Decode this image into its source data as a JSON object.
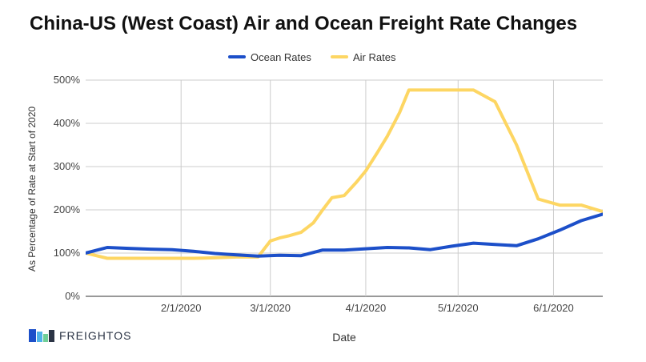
{
  "chart_data": {
    "type": "line",
    "title": "China-US (West Coast) Air and Ocean Freight Rate Changes",
    "xlabel": "Date",
    "ylabel": "As Percentage of Rate at Start of 2020",
    "ylim": [
      0,
      500
    ],
    "yticks": [
      0,
      100,
      200,
      300,
      400,
      500
    ],
    "ytick_labels": [
      "0%",
      "100%",
      "200%",
      "300%",
      "400%",
      "500%"
    ],
    "xlim_days": [
      0,
      168
    ],
    "xticks": [
      {
        "day": 31,
        "label": "2/1/2020"
      },
      {
        "day": 60,
        "label": "3/1/2020"
      },
      {
        "day": 91,
        "label": "4/1/2020"
      },
      {
        "day": 121,
        "label": "5/1/2020"
      },
      {
        "day": 152,
        "label": "6/1/2020"
      }
    ],
    "grid": true,
    "legend_position": "top-center",
    "series": [
      {
        "name": "Ocean Rates",
        "color": "#1c4fc9",
        "x": [
          0,
          7,
          14,
          21,
          28,
          35,
          42,
          49,
          56,
          63,
          70,
          77,
          84,
          91,
          98,
          105,
          112,
          119,
          126,
          133,
          140,
          147,
          154,
          161,
          168
        ],
        "values": [
          100,
          113,
          111,
          109,
          108,
          104,
          99,
          96,
          93,
          95,
          94,
          107,
          107,
          110,
          113,
          112,
          108,
          116,
          123,
          120,
          117,
          133,
          153,
          175,
          190
        ]
      },
      {
        "name": "Air Rates",
        "color": "#fdd663",
        "x": [
          0,
          7,
          14,
          21,
          28,
          35,
          42,
          49,
          56,
          60,
          63,
          66,
          70,
          74,
          77,
          80,
          84,
          88,
          91,
          95,
          98,
          102,
          105,
          112,
          119,
          126,
          133,
          140,
          147,
          154,
          161,
          168
        ],
        "values": [
          100,
          88,
          88,
          88,
          88,
          88,
          89,
          91,
          91,
          128,
          135,
          140,
          148,
          170,
          200,
          228,
          233,
          264,
          290,
          335,
          370,
          425,
          477,
          477,
          477,
          477,
          450,
          350,
          225,
          211,
          211,
          196
        ]
      }
    ]
  },
  "branding": {
    "logo_text": "FREIGHTOS",
    "logo_colors": [
      "#1c4fc9",
      "#4fb3e8",
      "#6fcf97",
      "#2b3445"
    ]
  }
}
